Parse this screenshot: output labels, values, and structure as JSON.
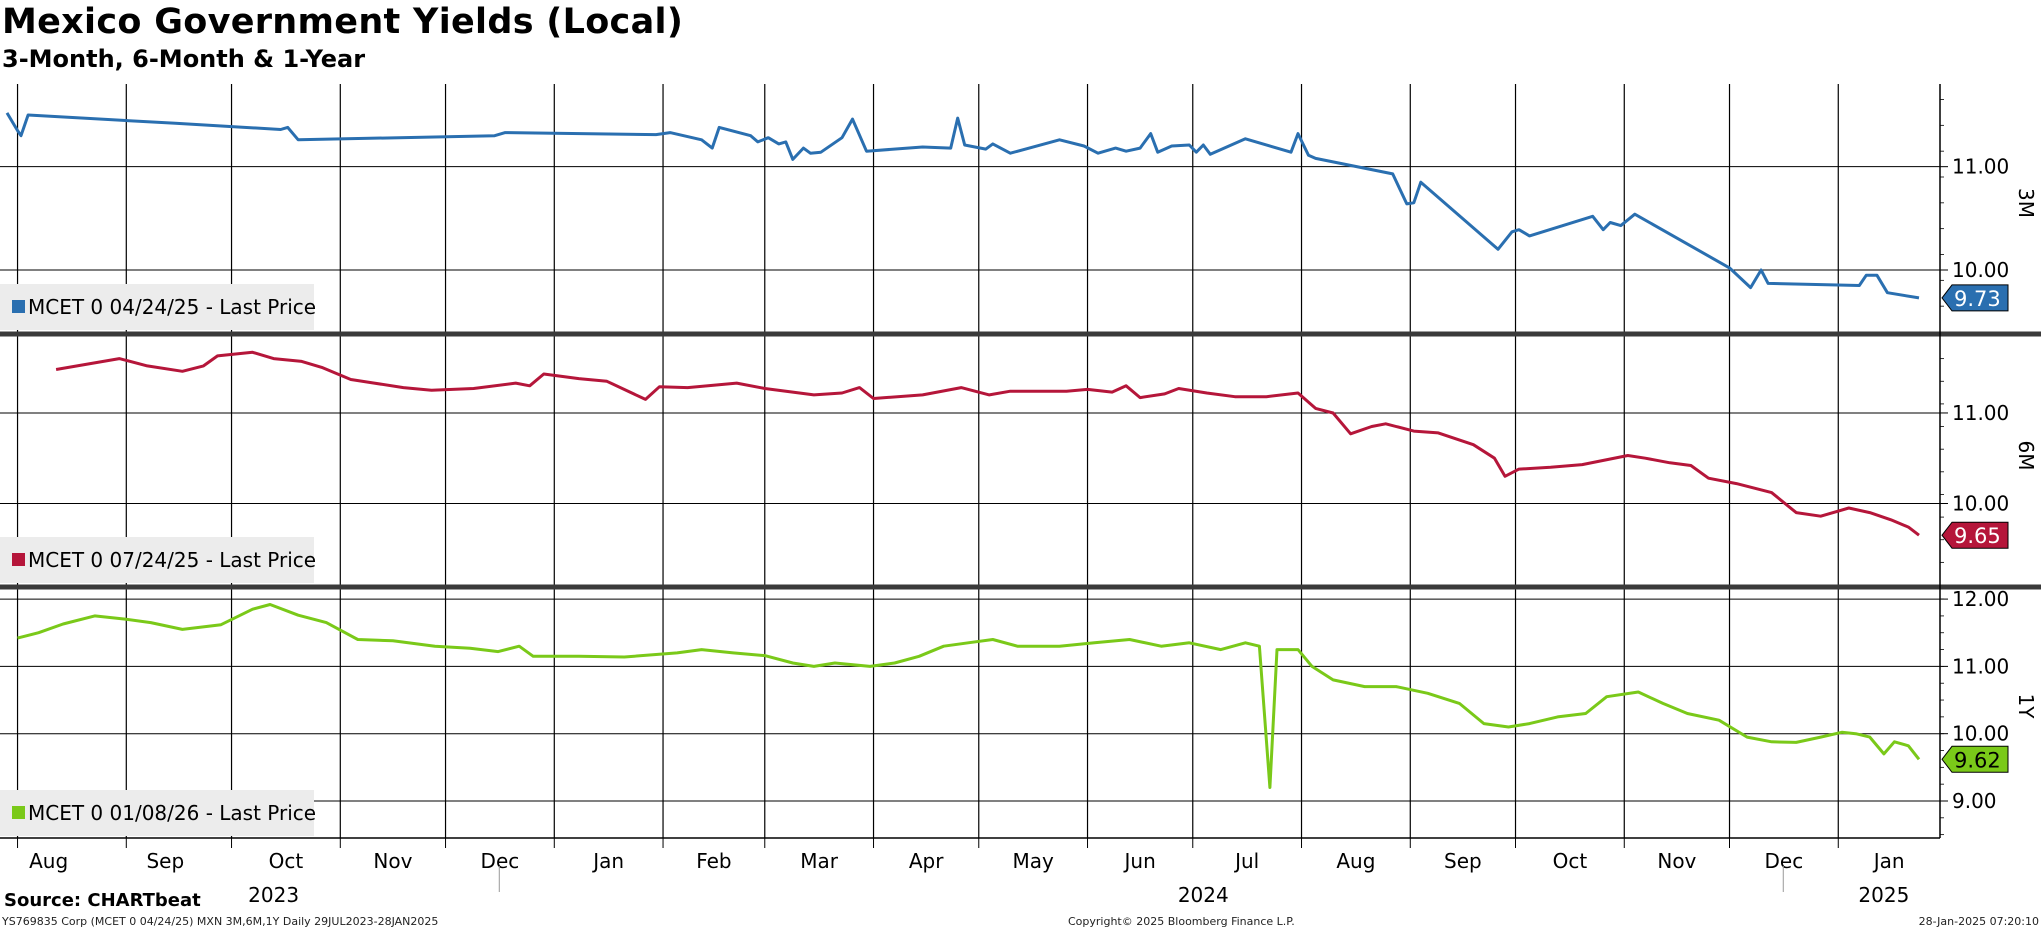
{
  "title": "Mexico Government Yields (Local)",
  "subtitle": "3-Month, 6-Month & 1-Year",
  "source": "Source: CHARTbeat",
  "footer": {
    "left": "YS769835 Corp (MCET 0 04/24/25) MXN 3M,6M,1Y  Daily 29JUL2023-28JAN2025",
    "center": "Copyright© 2025 Bloomberg Finance L.P.",
    "right": "28-Jan-2025 07:20:10"
  },
  "chart_data": {
    "type": "line",
    "date_range": [
      "2023-07-29",
      "2025-01-28"
    ],
    "x_axis": {
      "month_labels": [
        "Aug",
        "Sep",
        "Oct",
        "Nov",
        "Dec",
        "Jan",
        "Feb",
        "Mar",
        "Apr",
        "May",
        "Jun",
        "Jul",
        "Aug",
        "Sep",
        "Oct",
        "Nov",
        "Dec",
        "Jan"
      ],
      "year_labels": [
        "2023",
        "2024",
        "2025"
      ]
    },
    "panels": [
      {
        "axis_label": "3M",
        "legend": "MCET 0 04/24/25 - Last Price",
        "color": "#2a6fb0",
        "last_value": 9.73,
        "ylim": [
          9.4,
          11.8
        ],
        "yticks": [
          10.0,
          11.0
        ],
        "grid": true,
        "values": [
          [
            "2023-07-29",
            11.52
          ],
          [
            "2023-08-01",
            11.35
          ],
          [
            "2023-08-02",
            11.3
          ],
          [
            "2023-08-04",
            11.5
          ],
          [
            "2023-09-15",
            11.42
          ],
          [
            "2023-10-15",
            11.36
          ],
          [
            "2023-10-17",
            11.38
          ],
          [
            "2023-10-20",
            11.26
          ],
          [
            "2023-12-15",
            11.3
          ],
          [
            "2023-12-18",
            11.33
          ],
          [
            "2024-01-30",
            11.31
          ],
          [
            "2024-02-03",
            11.33
          ],
          [
            "2024-02-12",
            11.26
          ],
          [
            "2024-02-15",
            11.18
          ],
          [
            "2024-02-17",
            11.38
          ],
          [
            "2024-02-26",
            11.3
          ],
          [
            "2024-02-28",
            11.24
          ],
          [
            "2024-03-02",
            11.28
          ],
          [
            "2024-03-05",
            11.22
          ],
          [
            "2024-03-07",
            11.24
          ],
          [
            "2024-03-09",
            11.07
          ],
          [
            "2024-03-12",
            11.18
          ],
          [
            "2024-03-14",
            11.13
          ],
          [
            "2024-03-17",
            11.14
          ],
          [
            "2024-03-23",
            11.28
          ],
          [
            "2024-03-26",
            11.46
          ],
          [
            "2024-03-30",
            11.15
          ],
          [
            "2024-04-15",
            11.19
          ],
          [
            "2024-04-23",
            11.18
          ],
          [
            "2024-04-25",
            11.47
          ],
          [
            "2024-04-27",
            11.21
          ],
          [
            "2024-05-03",
            11.17
          ],
          [
            "2024-05-05",
            11.22
          ],
          [
            "2024-05-10",
            11.13
          ],
          [
            "2024-05-24",
            11.26
          ],
          [
            "2024-05-31",
            11.2
          ],
          [
            "2024-06-04",
            11.13
          ],
          [
            "2024-06-09",
            11.18
          ],
          [
            "2024-06-12",
            11.15
          ],
          [
            "2024-06-16",
            11.18
          ],
          [
            "2024-06-19",
            11.32
          ],
          [
            "2024-06-21",
            11.14
          ],
          [
            "2024-06-25",
            11.2
          ],
          [
            "2024-06-30",
            11.21
          ],
          [
            "2024-07-02",
            11.14
          ],
          [
            "2024-07-04",
            11.21
          ],
          [
            "2024-07-06",
            11.12
          ],
          [
            "2024-07-16",
            11.27
          ],
          [
            "2024-07-29",
            11.14
          ],
          [
            "2024-07-31",
            11.32
          ],
          [
            "2024-08-03",
            11.11
          ],
          [
            "2024-08-05",
            11.08
          ],
          [
            "2024-08-27",
            10.93
          ],
          [
            "2024-08-31",
            10.64
          ],
          [
            "2024-09-02",
            10.65
          ],
          [
            "2024-09-04",
            10.85
          ],
          [
            "2024-09-26",
            10.2
          ],
          [
            "2024-09-30",
            10.37
          ],
          [
            "2024-10-02",
            10.39
          ],
          [
            "2024-10-05",
            10.33
          ],
          [
            "2024-10-23",
            10.52
          ],
          [
            "2024-10-26",
            10.39
          ],
          [
            "2024-10-28",
            10.46
          ],
          [
            "2024-10-31",
            10.43
          ],
          [
            "2024-11-04",
            10.54
          ],
          [
            "2024-12-01",
            10.02
          ],
          [
            "2024-12-07",
            9.83
          ],
          [
            "2024-12-10",
            10.0
          ],
          [
            "2024-12-12",
            9.87
          ],
          [
            "2025-01-07",
            9.85
          ],
          [
            "2025-01-09",
            9.95
          ],
          [
            "2025-01-12",
            9.95
          ],
          [
            "2025-01-15",
            9.78
          ],
          [
            "2025-01-24",
            9.73
          ]
        ]
      },
      {
        "axis_label": "6M",
        "legend": "MCET 0 07/24/25 - Last Price",
        "color": "#b5163a",
        "last_value": 9.65,
        "ylim": [
          9.1,
          11.85
        ],
        "yticks": [
          10.0,
          11.0
        ],
        "grid": true,
        "values": [
          [
            "2023-08-12",
            11.48
          ],
          [
            "2023-08-30",
            11.6
          ],
          [
            "2023-09-07",
            11.52
          ],
          [
            "2023-09-17",
            11.46
          ],
          [
            "2023-09-23",
            11.52
          ],
          [
            "2023-09-27",
            11.63
          ],
          [
            "2023-10-07",
            11.67
          ],
          [
            "2023-10-13",
            11.6
          ],
          [
            "2023-10-21",
            11.57
          ],
          [
            "2023-10-27",
            11.5
          ],
          [
            "2023-11-04",
            11.37
          ],
          [
            "2023-11-19",
            11.28
          ],
          [
            "2023-11-27",
            11.25
          ],
          [
            "2023-12-09",
            11.27
          ],
          [
            "2023-12-21",
            11.33
          ],
          [
            "2023-12-25",
            11.3
          ],
          [
            "2023-12-29",
            11.43
          ],
          [
            "2024-01-08",
            11.38
          ],
          [
            "2024-01-16",
            11.35
          ],
          [
            "2024-01-27",
            11.15
          ],
          [
            "2024-01-31",
            11.29
          ],
          [
            "2024-02-08",
            11.28
          ],
          [
            "2024-02-22",
            11.33
          ],
          [
            "2024-03-01",
            11.27
          ],
          [
            "2024-03-15",
            11.2
          ],
          [
            "2024-03-23",
            11.22
          ],
          [
            "2024-03-28",
            11.28
          ],
          [
            "2024-04-01",
            11.16
          ],
          [
            "2024-04-15",
            11.2
          ],
          [
            "2024-04-26",
            11.28
          ],
          [
            "2024-05-04",
            11.2
          ],
          [
            "2024-05-10",
            11.24
          ],
          [
            "2024-05-26",
            11.24
          ],
          [
            "2024-06-01",
            11.26
          ],
          [
            "2024-06-08",
            11.23
          ],
          [
            "2024-06-12",
            11.3
          ],
          [
            "2024-06-16",
            11.17
          ],
          [
            "2024-06-23",
            11.21
          ],
          [
            "2024-06-27",
            11.27
          ],
          [
            "2024-07-05",
            11.22
          ],
          [
            "2024-07-13",
            11.18
          ],
          [
            "2024-07-22",
            11.18
          ],
          [
            "2024-07-31",
            11.22
          ],
          [
            "2024-08-05",
            11.05
          ],
          [
            "2024-08-10",
            11.0
          ],
          [
            "2024-08-15",
            10.77
          ],
          [
            "2024-08-21",
            10.85
          ],
          [
            "2024-08-25",
            10.88
          ],
          [
            "2024-09-02",
            10.8
          ],
          [
            "2024-09-09",
            10.78
          ],
          [
            "2024-09-19",
            10.65
          ],
          [
            "2024-09-25",
            10.5
          ],
          [
            "2024-09-28",
            10.3
          ],
          [
            "2024-10-02",
            10.38
          ],
          [
            "2024-10-11",
            10.4
          ],
          [
            "2024-10-20",
            10.43
          ],
          [
            "2024-11-02",
            10.53
          ],
          [
            "2024-11-07",
            10.5
          ],
          [
            "2024-11-14",
            10.45
          ],
          [
            "2024-11-20",
            10.42
          ],
          [
            "2024-11-25",
            10.28
          ],
          [
            "2024-12-03",
            10.22
          ],
          [
            "2024-12-13",
            10.12
          ],
          [
            "2024-12-20",
            9.9
          ],
          [
            "2024-12-27",
            9.86
          ],
          [
            "2025-01-04",
            9.95
          ],
          [
            "2025-01-10",
            9.9
          ],
          [
            "2025-01-16",
            9.82
          ],
          [
            "2025-01-21",
            9.74
          ],
          [
            "2025-01-24",
            9.65
          ]
        ]
      },
      {
        "axis_label": "1Y",
        "legend": "MCET 0 01/08/26 - Last Price",
        "color": "#7ac919",
        "last_value": 9.62,
        "ylim": [
          8.45,
          12.15
        ],
        "yticks": [
          9.0,
          10.0,
          11.0,
          12.0
        ],
        "grid": true,
        "values": [
          [
            "2023-08-01",
            11.42
          ],
          [
            "2023-08-07",
            11.5
          ],
          [
            "2023-08-14",
            11.63
          ],
          [
            "2023-08-23",
            11.75
          ],
          [
            "2023-09-01",
            11.7
          ],
          [
            "2023-09-08",
            11.65
          ],
          [
            "2023-09-17",
            11.55
          ],
          [
            "2023-09-28",
            11.62
          ],
          [
            "2023-10-07",
            11.85
          ],
          [
            "2023-10-12",
            11.92
          ],
          [
            "2023-10-20",
            11.76
          ],
          [
            "2023-10-28",
            11.65
          ],
          [
            "2023-11-06",
            11.4
          ],
          [
            "2023-11-16",
            11.38
          ],
          [
            "2023-11-28",
            11.3
          ],
          [
            "2023-12-08",
            11.27
          ],
          [
            "2023-12-16",
            11.22
          ],
          [
            "2023-12-22",
            11.3
          ],
          [
            "2023-12-26",
            11.15
          ],
          [
            "2024-01-08",
            11.15
          ],
          [
            "2024-01-21",
            11.14
          ],
          [
            "2024-02-05",
            11.2
          ],
          [
            "2024-02-12",
            11.25
          ],
          [
            "2024-02-21",
            11.2
          ],
          [
            "2024-03-01",
            11.16
          ],
          [
            "2024-03-09",
            11.05
          ],
          [
            "2024-03-15",
            11.0
          ],
          [
            "2024-03-21",
            11.05
          ],
          [
            "2024-03-31",
            11.0
          ],
          [
            "2024-04-07",
            11.05
          ],
          [
            "2024-04-14",
            11.15
          ],
          [
            "2024-04-21",
            11.3
          ],
          [
            "2024-04-28",
            11.35
          ],
          [
            "2024-05-05",
            11.4
          ],
          [
            "2024-05-12",
            11.3
          ],
          [
            "2024-05-24",
            11.3
          ],
          [
            "2024-06-03",
            11.35
          ],
          [
            "2024-06-13",
            11.4
          ],
          [
            "2024-06-22",
            11.3
          ],
          [
            "2024-06-30",
            11.35
          ],
          [
            "2024-07-09",
            11.25
          ],
          [
            "2024-07-16",
            11.35
          ],
          [
            "2024-07-20",
            11.3
          ],
          [
            "2024-07-23",
            9.2
          ],
          [
            "2024-07-25",
            11.25
          ],
          [
            "2024-07-31",
            11.25
          ],
          [
            "2024-08-04",
            11.0
          ],
          [
            "2024-08-10",
            10.8
          ],
          [
            "2024-08-19",
            10.7
          ],
          [
            "2024-08-28",
            10.7
          ],
          [
            "2024-09-06",
            10.6
          ],
          [
            "2024-09-15",
            10.45
          ],
          [
            "2024-09-22",
            10.15
          ],
          [
            "2024-09-29",
            10.1
          ],
          [
            "2024-10-05",
            10.15
          ],
          [
            "2024-10-13",
            10.25
          ],
          [
            "2024-10-21",
            10.3
          ],
          [
            "2024-10-27",
            10.55
          ],
          [
            "2024-11-05",
            10.62
          ],
          [
            "2024-11-12",
            10.45
          ],
          [
            "2024-11-19",
            10.3
          ],
          [
            "2024-11-28",
            10.2
          ],
          [
            "2024-12-06",
            9.95
          ],
          [
            "2024-12-13",
            9.88
          ],
          [
            "2024-12-20",
            9.87
          ],
          [
            "2024-12-27",
            9.95
          ],
          [
            "2025-01-02",
            10.02
          ],
          [
            "2025-01-06",
            10.0
          ],
          [
            "2025-01-10",
            9.95
          ],
          [
            "2025-01-14",
            9.7
          ],
          [
            "2025-01-17",
            9.88
          ],
          [
            "2025-01-21",
            9.82
          ],
          [
            "2025-01-24",
            9.62
          ]
        ]
      }
    ]
  }
}
